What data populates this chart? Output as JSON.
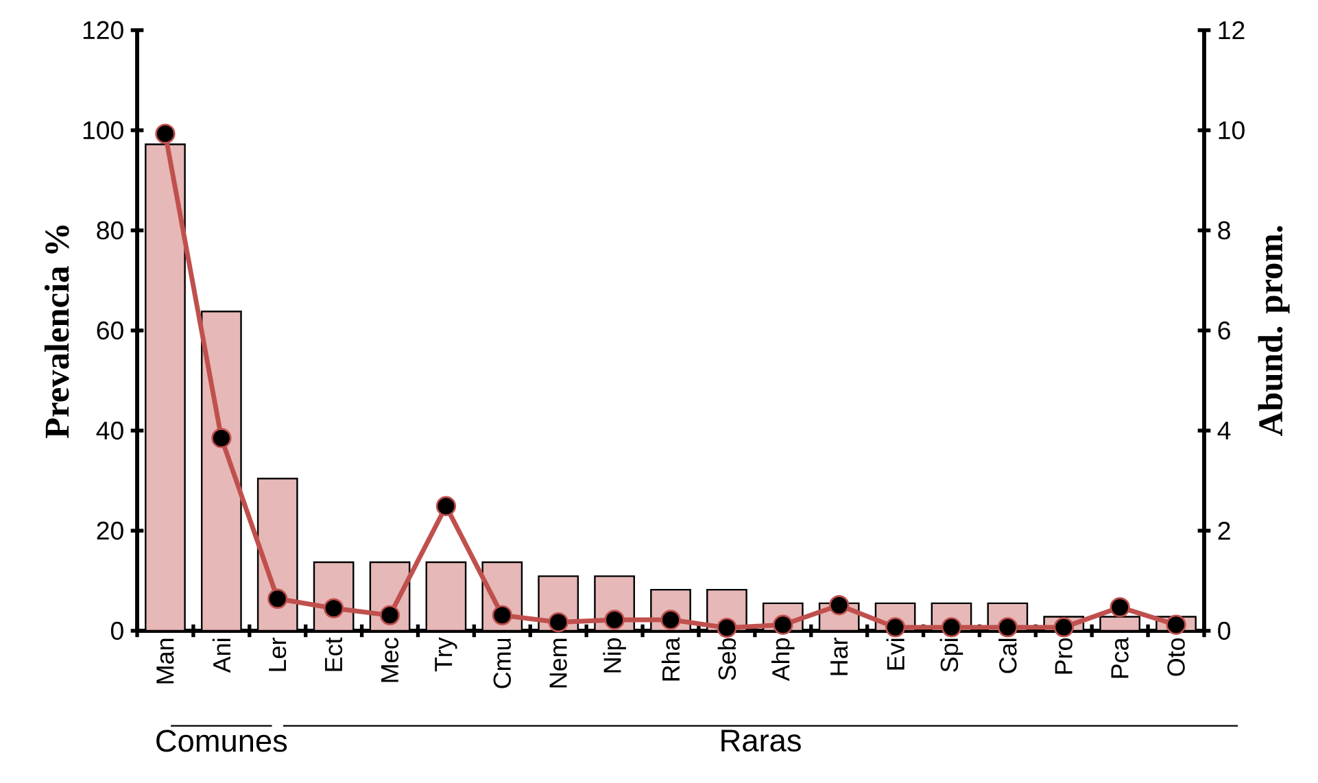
{
  "chart_data": {
    "type": "bar",
    "ylabel": "Prevalencia   %",
    "y2label": "Abund. prom.",
    "categories": [
      "Man",
      "Ani",
      "Ler",
      "Ect",
      "Mec",
      "Try",
      "Cmu",
      "Nem",
      "Nip",
      "Rha",
      "Seb",
      "Ahp",
      "Har",
      "Evi",
      "Spi",
      "Cal",
      "Pro",
      "Pca",
      "Oto"
    ],
    "series": [
      {
        "color": "#e6b8b7",
        "values": [
          97.2,
          63.8,
          30.4,
          13.7,
          13.7,
          13.7,
          13.7,
          10.9,
          10.9,
          8.2,
          8.2,
          5.5,
          5.5,
          5.5,
          5.5,
          5.5,
          2.8,
          2.8,
          2.8
        ]
      },
      {
        "type": "line",
        "axis": "y2",
        "color": "#c0504d",
        "marker": "circle",
        "values": [
          9.93,
          3.85,
          0.64,
          0.45,
          0.31,
          2.49,
          0.31,
          0.17,
          0.22,
          0.22,
          0.06,
          0.12,
          0.51,
          0.07,
          0.07,
          0.07,
          0.07,
          0.47,
          0.12
        ]
      }
    ],
    "ylim": [
      0,
      120
    ],
    "yticks": [
      0,
      20,
      40,
      60,
      80,
      100,
      120
    ],
    "y2lim": [
      0,
      12
    ],
    "y2ticks": [
      0,
      2,
      4,
      6,
      8,
      10,
      12
    ],
    "annotations": [
      "Comunes",
      "Raras"
    ],
    "grid": false
  }
}
